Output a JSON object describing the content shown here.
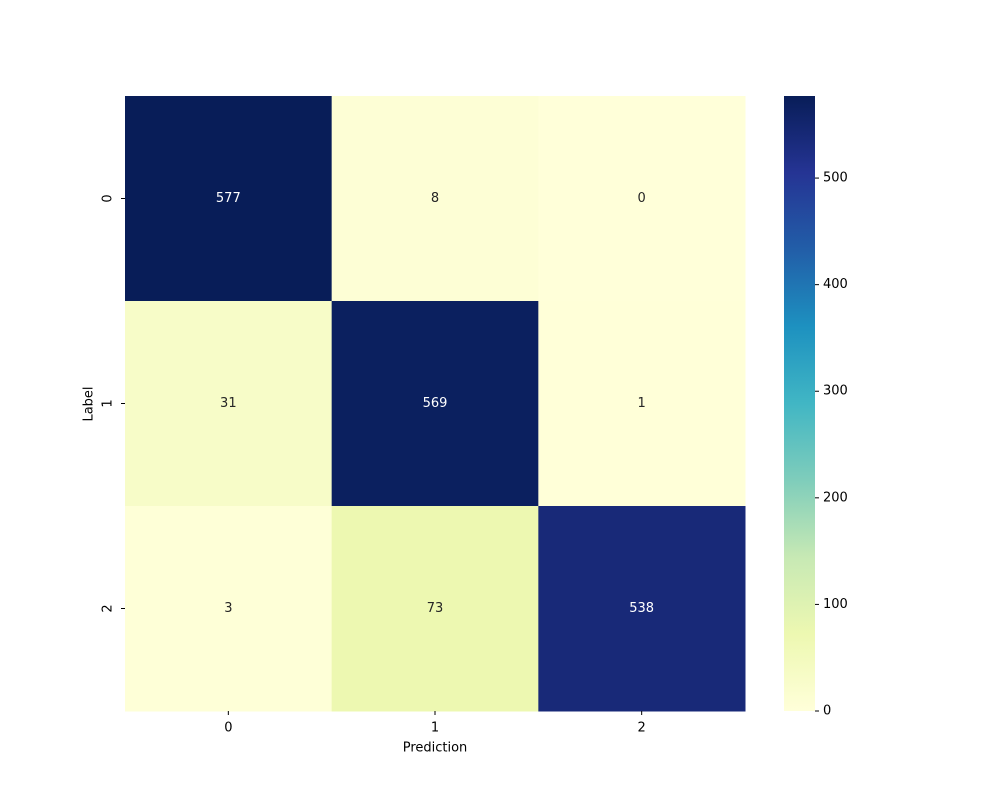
{
  "chart_data": {
    "type": "heatmap",
    "x_categories": [
      "0",
      "1",
      "2"
    ],
    "y_categories": [
      "0",
      "1",
      "2"
    ],
    "values": [
      [
        577,
        8,
        0
      ],
      [
        31,
        569,
        1
      ],
      [
        3,
        73,
        538
      ]
    ],
    "xlabel": "Prediction",
    "ylabel": "Label",
    "colormap": "YlGnBu",
    "clim": [
      0,
      577
    ],
    "colorbar_ticks": [
      0,
      100,
      200,
      300,
      400,
      500
    ]
  }
}
